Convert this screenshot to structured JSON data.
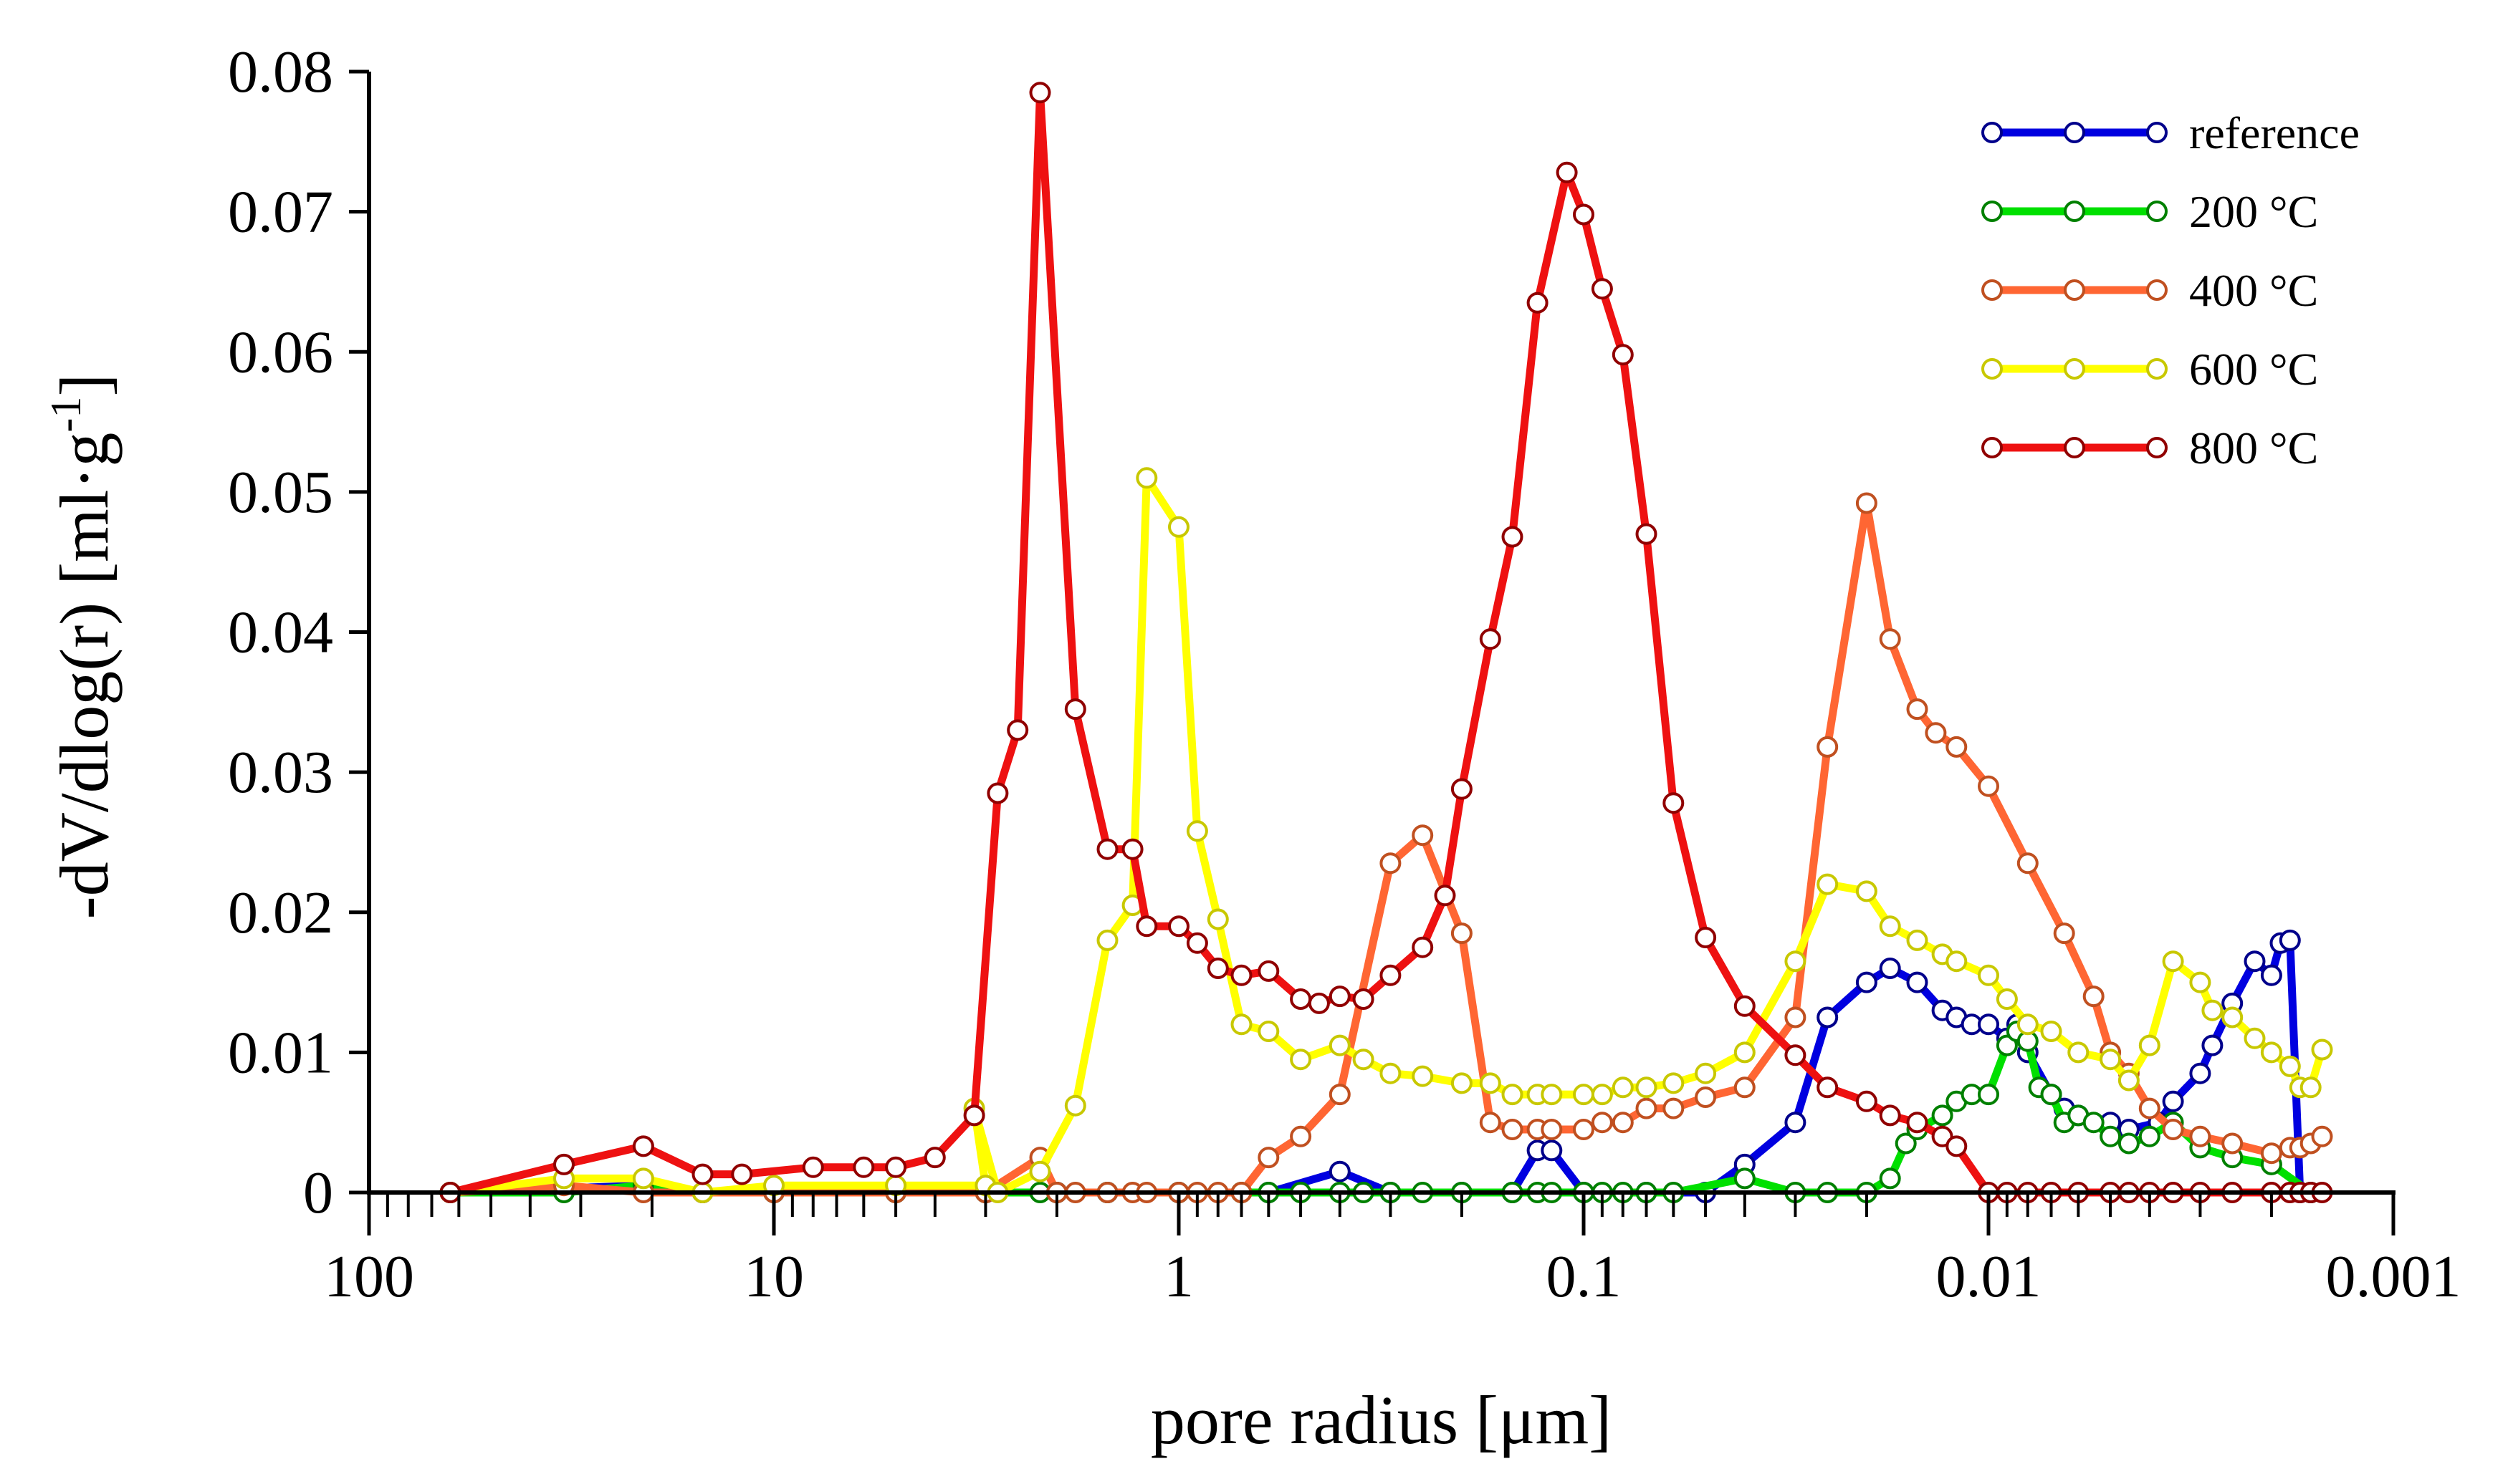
{
  "chart_data": {
    "type": "line",
    "title": "",
    "xlabel": "pore radius [μm]",
    "ylabel": "-dV/dlog(r) [ml·g",
    "ylabel_sup": "-1",
    "ylabel_end": "]",
    "x_scale": "log",
    "x_reversed": true,
    "xlim": [
      100,
      0.001
    ],
    "ylim": [
      0,
      0.08
    ],
    "x_ticks": [
      {
        "value": 100,
        "label": "100"
      },
      {
        "value": 10,
        "label": "10"
      },
      {
        "value": 1,
        "label": "1"
      },
      {
        "value": 0.1,
        "label": "0.1"
      },
      {
        "value": 0.01,
        "label": "0.01"
      },
      {
        "value": 0.001,
        "label": "0.001"
      }
    ],
    "y_ticks": [
      {
        "value": 0,
        "label": "0"
      },
      {
        "value": 0.01,
        "label": "0.01"
      },
      {
        "value": 0.02,
        "label": "0.02"
      },
      {
        "value": 0.03,
        "label": "0.03"
      },
      {
        "value": 0.04,
        "label": "0.04"
      },
      {
        "value": 0.05,
        "label": "0.05"
      },
      {
        "value": 0.06,
        "label": "0.06"
      },
      {
        "value": 0.07,
        "label": "0.07"
      },
      {
        "value": 0.08,
        "label": "0.08"
      }
    ],
    "legend_position": "top-right",
    "series": [
      {
        "name": "reference",
        "color": "#0000e0",
        "marker_edge": "#00008b",
        "points": [
          [
            63,
            0
          ],
          [
            21,
            0.0005
          ],
          [
            15,
            0
          ],
          [
            10,
            0
          ],
          [
            5,
            0
          ],
          [
            3,
            0
          ],
          [
            2,
            0
          ],
          [
            1.5,
            0
          ],
          [
            1,
            0
          ],
          [
            0.6,
            0
          ],
          [
            0.4,
            0.0015
          ],
          [
            0.3,
            0
          ],
          [
            0.2,
            0
          ],
          [
            0.15,
            0
          ],
          [
            0.13,
            0.003
          ],
          [
            0.12,
            0.003
          ],
          [
            0.1,
            0
          ],
          [
            0.07,
            0
          ],
          [
            0.05,
            0
          ],
          [
            0.04,
            0.002
          ],
          [
            0.03,
            0.005
          ],
          [
            0.025,
            0.0125
          ],
          [
            0.02,
            0.015
          ],
          [
            0.0175,
            0.016
          ],
          [
            0.015,
            0.015
          ],
          [
            0.013,
            0.013
          ],
          [
            0.012,
            0.0125
          ],
          [
            0.011,
            0.012
          ],
          [
            0.01,
            0.012
          ],
          [
            0.009,
            0.011
          ],
          [
            0.0085,
            0.012
          ],
          [
            0.008,
            0.01
          ],
          [
            0.007,
            0.007
          ],
          [
            0.0065,
            0.006
          ],
          [
            0.006,
            0.0055
          ],
          [
            0.005,
            0.005
          ],
          [
            0.0045,
            0.0045
          ],
          [
            0.0038,
            0.005
          ],
          [
            0.0035,
            0.0065
          ],
          [
            0.003,
            0.0085
          ],
          [
            0.0028,
            0.0105
          ],
          [
            0.0025,
            0.0135
          ],
          [
            0.0022,
            0.0165
          ],
          [
            0.002,
            0.0155
          ],
          [
            0.0019,
            0.0178
          ],
          [
            0.0018,
            0.018
          ],
          [
            0.0017,
            0
          ],
          [
            0.0016,
            0
          ]
        ]
      },
      {
        "name": "200 °C",
        "color": "#00e000",
        "marker_edge": "#008000",
        "points": [
          [
            63,
            0
          ],
          [
            33,
            0
          ],
          [
            21,
            0.0005
          ],
          [
            15,
            0
          ],
          [
            10,
            0
          ],
          [
            5,
            0
          ],
          [
            3,
            0
          ],
          [
            2.2,
            0
          ],
          [
            2,
            0
          ],
          [
            1.5,
            0
          ],
          [
            1,
            0
          ],
          [
            0.7,
            0
          ],
          [
            0.6,
            0
          ],
          [
            0.5,
            0
          ],
          [
            0.4,
            0
          ],
          [
            0.35,
            0
          ],
          [
            0.3,
            0
          ],
          [
            0.25,
            0
          ],
          [
            0.2,
            0
          ],
          [
            0.15,
            0
          ],
          [
            0.13,
            0
          ],
          [
            0.12,
            0
          ],
          [
            0.1,
            0
          ],
          [
            0.09,
            0
          ],
          [
            0.08,
            0
          ],
          [
            0.07,
            0
          ],
          [
            0.06,
            0
          ],
          [
            0.04,
            0.001
          ],
          [
            0.03,
            0
          ],
          [
            0.025,
            0
          ],
          [
            0.02,
            0
          ],
          [
            0.0175,
            0.001
          ],
          [
            0.016,
            0.0035
          ],
          [
            0.015,
            0.0045
          ],
          [
            0.013,
            0.0055
          ],
          [
            0.012,
            0.0065
          ],
          [
            0.011,
            0.007
          ],
          [
            0.01,
            0.007
          ],
          [
            0.009,
            0.0105
          ],
          [
            0.0085,
            0.0115
          ],
          [
            0.008,
            0.0108
          ],
          [
            0.0075,
            0.0075
          ],
          [
            0.007,
            0.007
          ],
          [
            0.0065,
            0.005
          ],
          [
            0.006,
            0.0055
          ],
          [
            0.0055,
            0.005
          ],
          [
            0.005,
            0.004
          ],
          [
            0.0045,
            0.0035
          ],
          [
            0.004,
            0.004
          ],
          [
            0.0035,
            0.005
          ],
          [
            0.003,
            0.0032
          ],
          [
            0.0025,
            0.0025
          ],
          [
            0.002,
            0.002
          ],
          [
            0.0016,
            0
          ]
        ]
      },
      {
        "name": "400 °C",
        "color": "#ff6633",
        "marker_edge": "#c05020",
        "points": [
          [
            63,
            0
          ],
          [
            33,
            0.0005
          ],
          [
            21,
            0
          ],
          [
            15,
            0
          ],
          [
            10,
            0
          ],
          [
            5,
            0
          ],
          [
            3,
            0
          ],
          [
            2.2,
            0.0025
          ],
          [
            2,
            0
          ],
          [
            1.8,
            0
          ],
          [
            1.5,
            0
          ],
          [
            1.3,
            0
          ],
          [
            1.2,
            0
          ],
          [
            1,
            0
          ],
          [
            0.9,
            0
          ],
          [
            0.8,
            0
          ],
          [
            0.7,
            0
          ],
          [
            0.6,
            0.0025
          ],
          [
            0.5,
            0.004
          ],
          [
            0.4,
            0.007
          ],
          [
            0.3,
            0.0235
          ],
          [
            0.25,
            0.0255
          ],
          [
            0.2,
            0.0185
          ],
          [
            0.17,
            0.005
          ],
          [
            0.15,
            0.0045
          ],
          [
            0.13,
            0.0045
          ],
          [
            0.12,
            0.0045
          ],
          [
            0.1,
            0.0045
          ],
          [
            0.09,
            0.005
          ],
          [
            0.08,
            0.005
          ],
          [
            0.07,
            0.006
          ],
          [
            0.06,
            0.006
          ],
          [
            0.05,
            0.0068
          ],
          [
            0.04,
            0.0075
          ],
          [
            0.03,
            0.0125
          ],
          [
            0.025,
            0.0318
          ],
          [
            0.02,
            0.0492
          ],
          [
            0.0175,
            0.0395
          ],
          [
            0.015,
            0.0345
          ],
          [
            0.0135,
            0.0328
          ],
          [
            0.012,
            0.0318
          ],
          [
            0.01,
            0.029
          ],
          [
            0.008,
            0.0235
          ],
          [
            0.0065,
            0.0185
          ],
          [
            0.0055,
            0.014
          ],
          [
            0.005,
            0.01
          ],
          [
            0.0045,
            0.0085
          ],
          [
            0.004,
            0.006
          ],
          [
            0.0035,
            0.0045
          ],
          [
            0.003,
            0.004
          ],
          [
            0.0025,
            0.0035
          ],
          [
            0.002,
            0.0028
          ],
          [
            0.0018,
            0.0032
          ],
          [
            0.0017,
            0.0032
          ],
          [
            0.0016,
            0.0035
          ],
          [
            0.0015,
            0.004
          ]
        ]
      },
      {
        "name": "600 °C",
        "color": "#ffff00",
        "marker_edge": "#c8c800",
        "points": [
          [
            63,
            0
          ],
          [
            33,
            0.001
          ],
          [
            21,
            0.001
          ],
          [
            15,
            0
          ],
          [
            10,
            0.0005
          ],
          [
            5,
            0.0005
          ],
          [
            3,
            0.0005
          ],
          [
            3.2,
            0.006
          ],
          [
            2.8,
            0
          ],
          [
            2.2,
            0.0015
          ],
          [
            1.8,
            0.0062
          ],
          [
            1.5,
            0.018
          ],
          [
            1.3,
            0.0205
          ],
          [
            1.2,
            0.051
          ],
          [
            1,
            0.0475
          ],
          [
            0.9,
            0.0258
          ],
          [
            0.8,
            0.0195
          ],
          [
            0.7,
            0.012
          ],
          [
            0.6,
            0.0115
          ],
          [
            0.5,
            0.0095
          ],
          [
            0.4,
            0.0105
          ],
          [
            0.35,
            0.0095
          ],
          [
            0.3,
            0.0085
          ],
          [
            0.25,
            0.0083
          ],
          [
            0.2,
            0.0078
          ],
          [
            0.17,
            0.0078
          ],
          [
            0.15,
            0.007
          ],
          [
            0.13,
            0.007
          ],
          [
            0.12,
            0.007
          ],
          [
            0.1,
            0.007
          ],
          [
            0.09,
            0.007
          ],
          [
            0.08,
            0.0075
          ],
          [
            0.07,
            0.0075
          ],
          [
            0.06,
            0.0078
          ],
          [
            0.05,
            0.0085
          ],
          [
            0.04,
            0.01
          ],
          [
            0.03,
            0.0165
          ],
          [
            0.025,
            0.022
          ],
          [
            0.02,
            0.0215
          ],
          [
            0.0175,
            0.019
          ],
          [
            0.015,
            0.018
          ],
          [
            0.013,
            0.017
          ],
          [
            0.012,
            0.0165
          ],
          [
            0.01,
            0.0155
          ],
          [
            0.009,
            0.0138
          ],
          [
            0.008,
            0.012
          ],
          [
            0.007,
            0.0115
          ],
          [
            0.006,
            0.01
          ],
          [
            0.005,
            0.0095
          ],
          [
            0.0045,
            0.008
          ],
          [
            0.004,
            0.0105
          ],
          [
            0.0035,
            0.0165
          ],
          [
            0.003,
            0.015
          ],
          [
            0.0028,
            0.013
          ],
          [
            0.0025,
            0.0125
          ],
          [
            0.0022,
            0.011
          ],
          [
            0.002,
            0.01
          ],
          [
            0.0018,
            0.009
          ],
          [
            0.0017,
            0.0075
          ],
          [
            0.0016,
            0.0075
          ],
          [
            0.0015,
            0.0102
          ]
        ]
      },
      {
        "name": "800 °C",
        "color": "#ee1111",
        "marker_edge": "#900000",
        "points": [
          [
            63,
            0
          ],
          [
            33,
            0.002
          ],
          [
            21,
            0.0033
          ],
          [
            15,
            0.0013
          ],
          [
            12,
            0.0013
          ],
          [
            8,
            0.0018
          ],
          [
            6,
            0.0018
          ],
          [
            5,
            0.0018
          ],
          [
            4,
            0.0025
          ],
          [
            3.2,
            0.0055
          ],
          [
            2.8,
            0.0285
          ],
          [
            2.5,
            0.033
          ],
          [
            2.2,
            0.0785
          ],
          [
            1.8,
            0.0345
          ],
          [
            1.5,
            0.0245
          ],
          [
            1.3,
            0.0245
          ],
          [
            1.2,
            0.019
          ],
          [
            1,
            0.019
          ],
          [
            0.9,
            0.0178
          ],
          [
            0.8,
            0.016
          ],
          [
            0.7,
            0.0155
          ],
          [
            0.6,
            0.0158
          ],
          [
            0.5,
            0.0138
          ],
          [
            0.45,
            0.0135
          ],
          [
            0.4,
            0.014
          ],
          [
            0.35,
            0.0138
          ],
          [
            0.3,
            0.0155
          ],
          [
            0.25,
            0.0175
          ],
          [
            0.22,
            0.0212
          ],
          [
            0.2,
            0.0288
          ],
          [
            0.17,
            0.0395
          ],
          [
            0.15,
            0.0468
          ],
          [
            0.13,
            0.0635
          ],
          [
            0.11,
            0.0728
          ],
          [
            0.1,
            0.0698
          ],
          [
            0.09,
            0.0645
          ],
          [
            0.08,
            0.0598
          ],
          [
            0.07,
            0.047
          ],
          [
            0.06,
            0.0278
          ],
          [
            0.05,
            0.0182
          ],
          [
            0.04,
            0.0133
          ],
          [
            0.03,
            0.0098
          ],
          [
            0.025,
            0.0075
          ],
          [
            0.02,
            0.0065
          ],
          [
            0.0175,
            0.0055
          ],
          [
            0.015,
            0.005
          ],
          [
            0.013,
            0.004
          ],
          [
            0.012,
            0.0033
          ],
          [
            0.01,
            0
          ],
          [
            0.009,
            0
          ],
          [
            0.008,
            0
          ],
          [
            0.007,
            0
          ],
          [
            0.006,
            0
          ],
          [
            0.005,
            0
          ],
          [
            0.0045,
            0
          ],
          [
            0.004,
            0
          ],
          [
            0.0035,
            0
          ],
          [
            0.003,
            0
          ],
          [
            0.0025,
            0
          ],
          [
            0.002,
            0
          ],
          [
            0.0018,
            0
          ],
          [
            0.0017,
            0
          ],
          [
            0.0016,
            0
          ],
          [
            0.0015,
            0
          ]
        ]
      }
    ]
  }
}
